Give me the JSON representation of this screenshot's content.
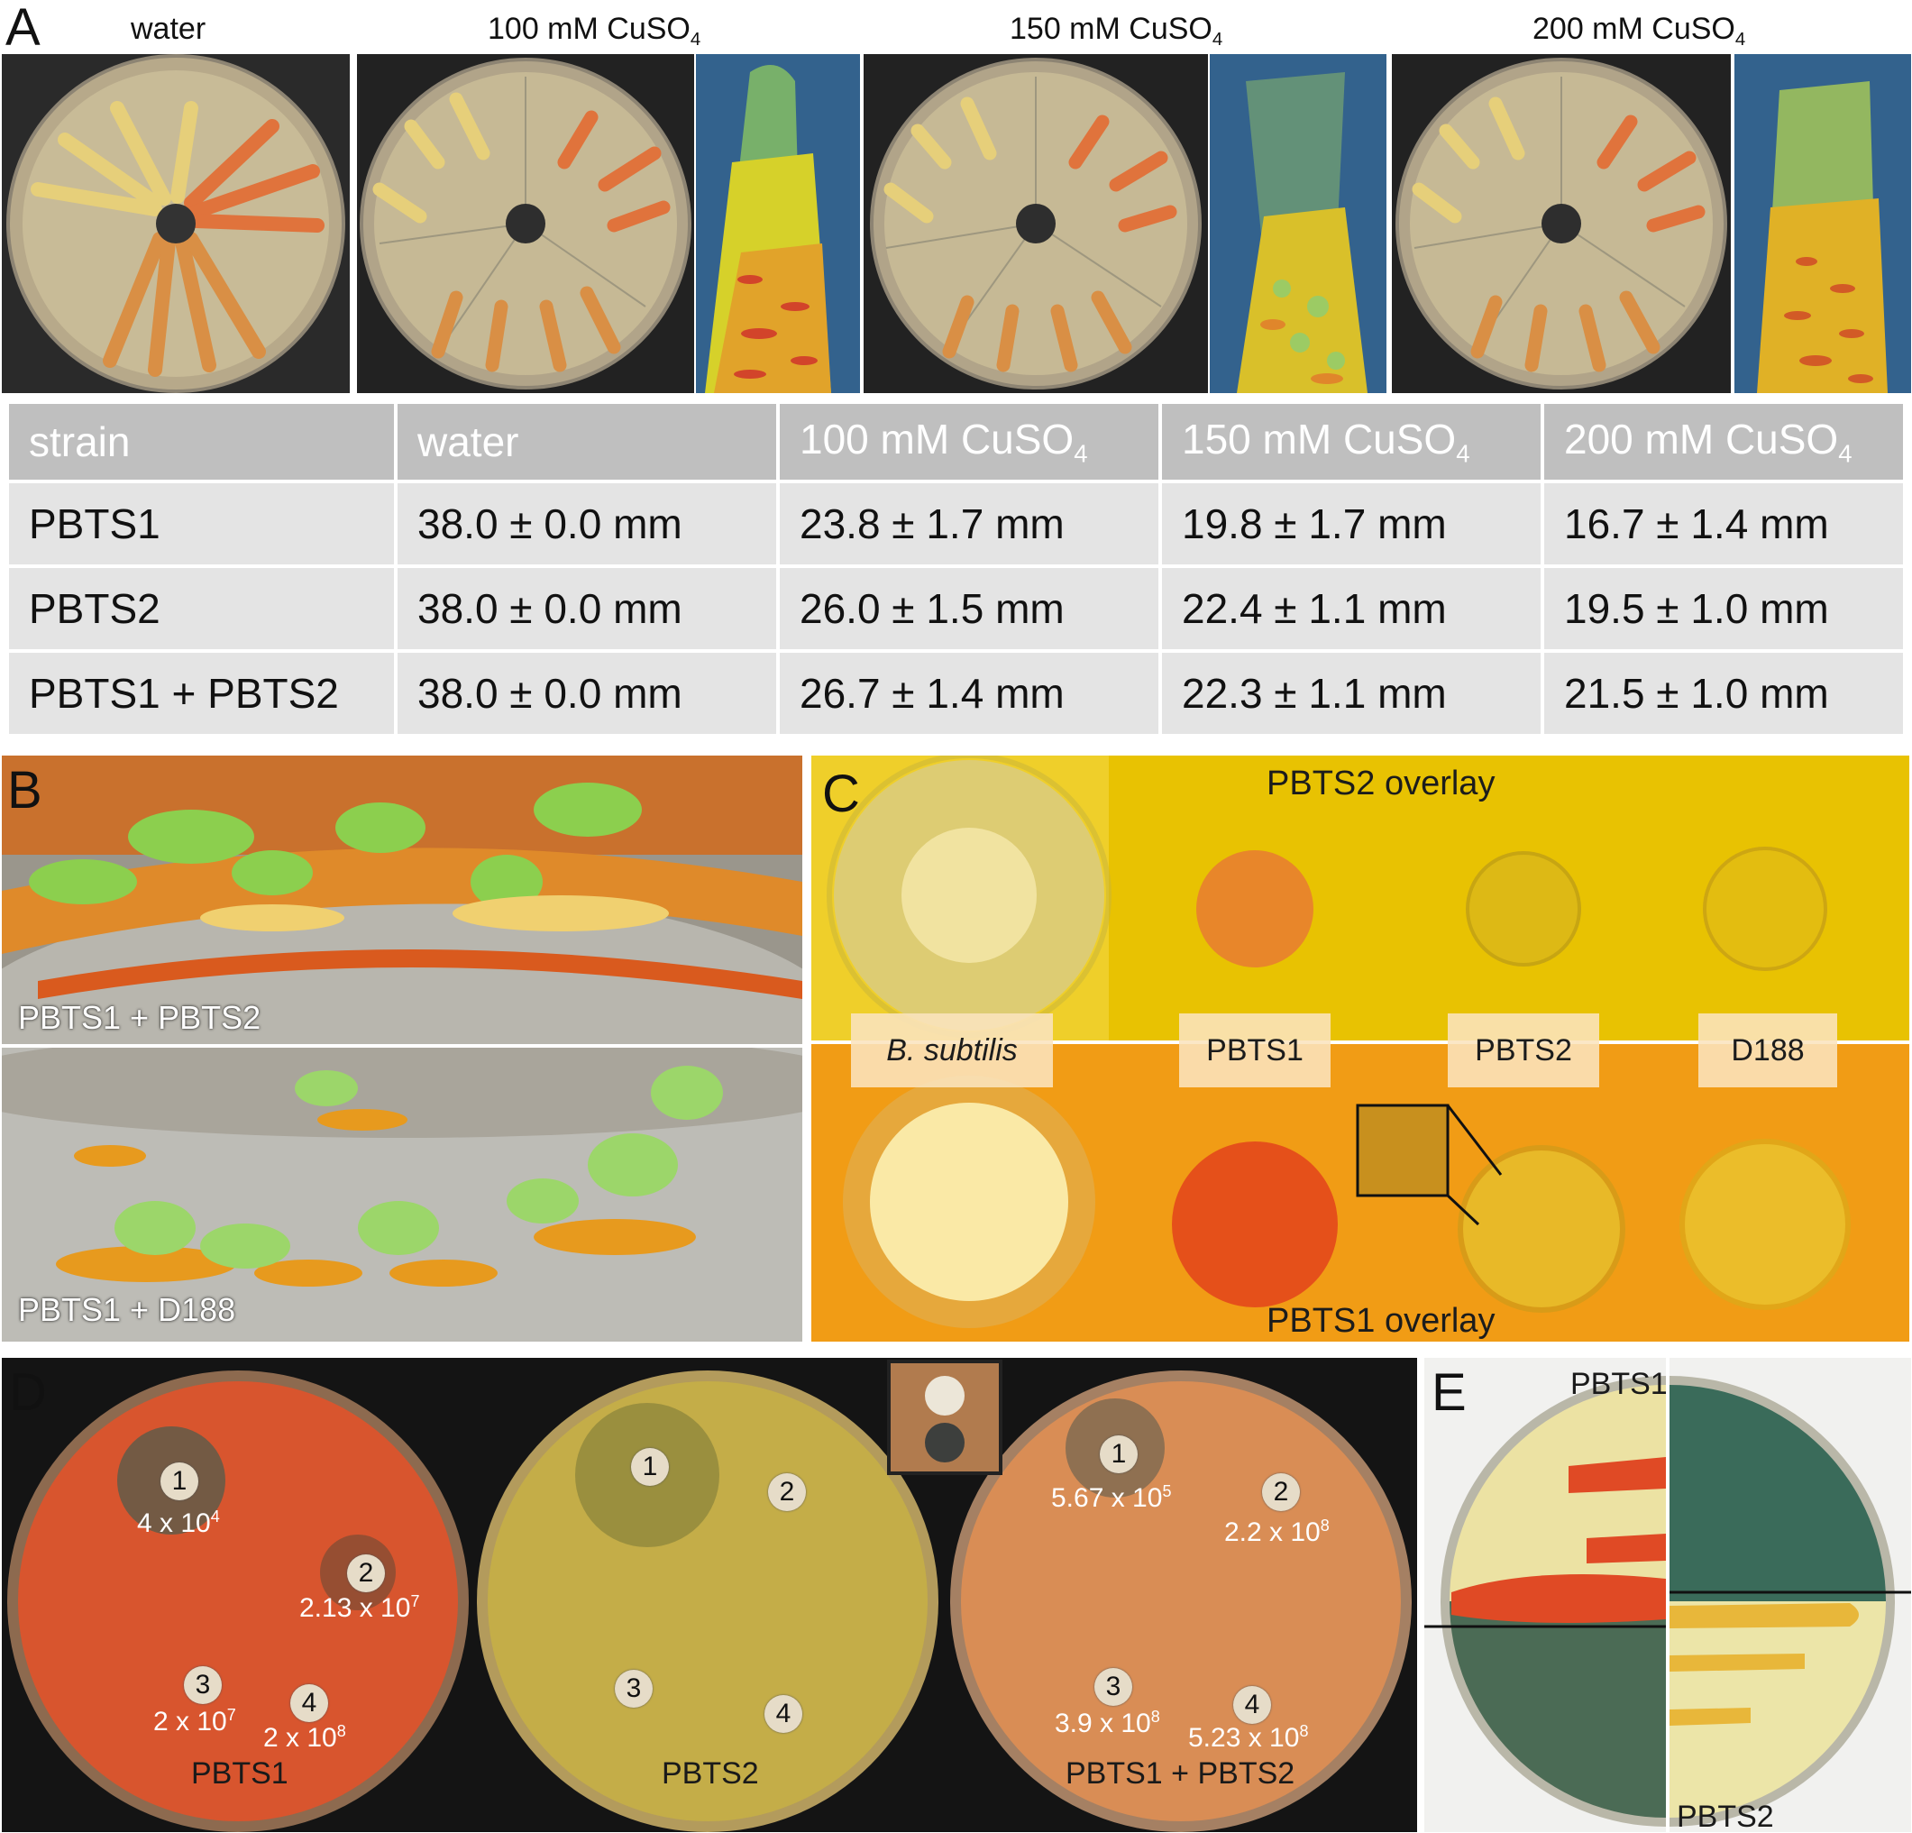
{
  "panel_letters": {
    "a": "A",
    "b": "B",
    "c": "C",
    "d": "D",
    "e": "E"
  },
  "panel_a": {
    "labels": [
      "water",
      "100 mM CuSO",
      "150 mM CuSO",
      "200 mM CuSO"
    ],
    "subscript": "4"
  },
  "table": {
    "header": [
      "strain",
      "water",
      "100 mM CuSO",
      "150 mM CuSO",
      "200 mM CuSO"
    ],
    "header_subscript": "4",
    "rows": [
      [
        "PBTS1",
        "38.0 ± 0.0 mm",
        "23.8 ± 1.7 mm",
        "19.8 ± 1.7 mm",
        "16.7 ± 1.4 mm"
      ],
      [
        "PBTS2",
        "38.0 ± 0.0 mm",
        "26.0 ± 1.5 mm",
        "22.4 ± 1.1 mm",
        "19.5 ± 1.0 mm"
      ],
      [
        "PBTS1 + PBTS2",
        "38.0 ± 0.0 mm",
        "26.7 ± 1.4 mm",
        "22.3 ± 1.1 mm",
        "21.5 ± 1.0 mm"
      ]
    ]
  },
  "panel_b": {
    "top_caption": "PBTS1 + PBTS2",
    "bottom_caption": "PBTS1 + D188"
  },
  "panel_c": {
    "top_overlay": "PBTS2 overlay",
    "bottom_overlay": "PBTS1 overlay",
    "strains": [
      "B. subtilis",
      "PBTS1",
      "PBTS2",
      "D188"
    ]
  },
  "panel_d": {
    "plates": [
      {
        "name": "PBTS1",
        "discs": [
          "1",
          "2",
          "3",
          "4"
        ],
        "values": [
          {
            "mant": "4 x 10",
            "exp": "4"
          },
          {
            "mant": "2.13 x 10",
            "exp": "7"
          },
          {
            "mant": "2 x 10",
            "exp": "7"
          },
          {
            "mant": "2 x 10",
            "exp": "8"
          }
        ]
      },
      {
        "name": "PBTS2",
        "discs": [
          "1",
          "2",
          "3",
          "4"
        ]
      },
      {
        "name": "PBTS1 + PBTS2",
        "discs": [
          "1",
          "2",
          "3",
          "4"
        ],
        "values": [
          {
            "mant": "5.67 x 10",
            "exp": "5"
          },
          {
            "mant": "2.2 x 10",
            "exp": "8"
          },
          {
            "mant": "3.9 x 10",
            "exp": "8"
          },
          {
            "mant": "5.23 x 10",
            "exp": "8"
          }
        ]
      }
    ]
  },
  "panel_e": {
    "top_label": "PBTS1",
    "bottom_label": "PBTS2"
  },
  "colors": {
    "table_header": "#bfbfbf",
    "table_body": "#e4e4e4",
    "agar_yellow": "#e9c400",
    "agar_orange": "#f29b16"
  }
}
